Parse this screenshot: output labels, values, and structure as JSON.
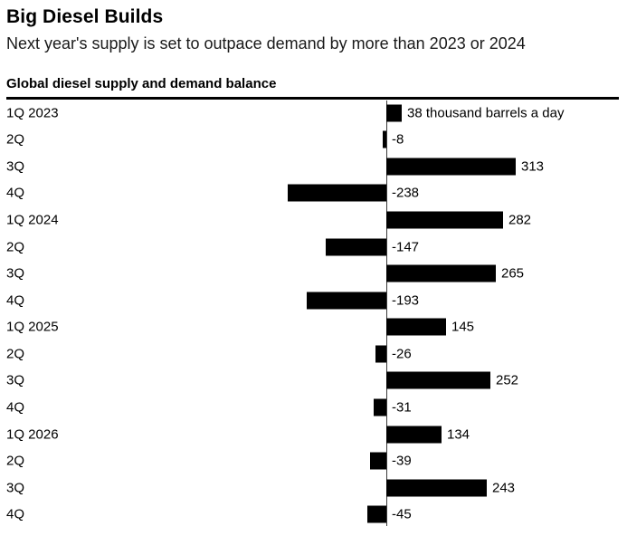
{
  "header": {
    "title": "Big Diesel Builds",
    "subtitle": "Next year's supply is set to outpace demand by more than 2023 or 2024"
  },
  "chart_data": {
    "type": "bar",
    "orientation": "horizontal",
    "title": "Big Diesel Builds",
    "subtitle": "Next year's supply is set to outpace demand by more than 2023 or 2024",
    "label": "Global diesel supply and demand balance",
    "unit": "thousand barrels a day",
    "categories": [
      "1Q 2023",
      "2Q",
      "3Q",
      "4Q",
      "1Q 2024",
      "2Q",
      "3Q",
      "4Q",
      "1Q 2025",
      "2Q",
      "3Q",
      "4Q",
      "1Q 2026",
      "2Q",
      "3Q",
      "4Q"
    ],
    "values": [
      38,
      -8,
      313,
      -238,
      282,
      -147,
      265,
      -193,
      145,
      -26,
      252,
      -31,
      134,
      -39,
      243,
      -45
    ],
    "value_labels": [
      "38 thousand barrels a day",
      "-8",
      "313",
      "-238",
      "282",
      "-147",
      "265",
      "-193",
      "145",
      "-26",
      "252",
      "-31",
      "134",
      "-39",
      "243",
      "-45"
    ],
    "bar_color": "#000000",
    "background_color": "#ffffff",
    "legend": false,
    "grid": false,
    "zero_line": true,
    "xlim": [
      -280,
      580
    ]
  }
}
